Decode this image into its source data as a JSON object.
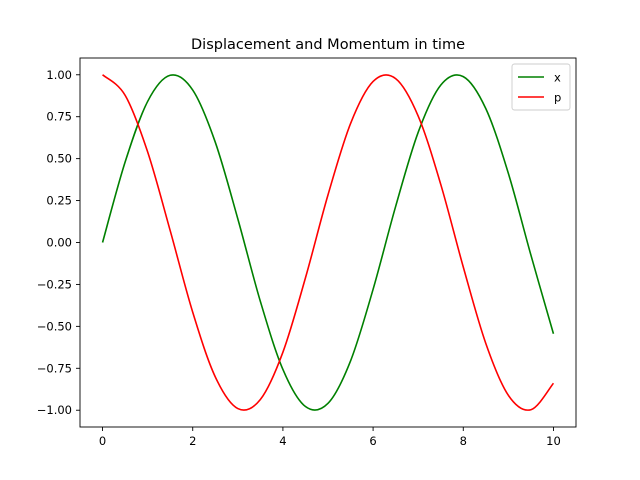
{
  "chart_data": {
    "type": "line",
    "title": "Displacement and Momentum in time",
    "xlabel": "",
    "ylabel": "",
    "xlim": [
      -0.5,
      10.5
    ],
    "ylim": [
      -1.1,
      1.1
    ],
    "x_range": [
      0,
      10
    ],
    "x_ticks": [
      0,
      2,
      4,
      6,
      8,
      10
    ],
    "x_tick_labels": [
      "0",
      "2",
      "4",
      "6",
      "8",
      "10"
    ],
    "y_ticks": [
      1.0,
      0.75,
      0.5,
      0.25,
      0.0,
      -0.25,
      -0.5,
      -0.75,
      -1.0
    ],
    "y_tick_labels": [
      "1.00",
      "0.75",
      "0.50",
      "0.25",
      "0.00",
      "−0.25",
      "−0.50",
      "−0.75",
      "−1.00"
    ],
    "grid": false,
    "legend_position": "top-right",
    "series": [
      {
        "name": "x",
        "color": "#008000",
        "x": [
          0,
          0.5,
          1,
          1.5,
          2,
          2.5,
          3,
          3.5,
          4,
          4.5,
          5,
          5.5,
          6,
          6.5,
          7,
          7.5,
          8,
          8.5,
          9,
          9.5,
          10
        ],
        "y": [
          0.0,
          0.479,
          0.841,
          0.997,
          0.909,
          0.598,
          0.141,
          -0.351,
          -0.757,
          -0.978,
          -0.959,
          -0.706,
          -0.279,
          0.215,
          0.657,
          0.938,
          0.989,
          0.798,
          0.412,
          -0.075,
          -0.544
        ]
      },
      {
        "name": "p",
        "color": "#ff0000",
        "x": [
          0,
          0.5,
          1,
          1.5,
          2,
          2.5,
          3,
          3.5,
          4,
          4.5,
          5,
          5.5,
          6,
          6.5,
          7,
          7.5,
          8,
          8.5,
          9,
          9.5,
          10
        ],
        "y": [
          1.0,
          0.878,
          0.54,
          0.071,
          -0.416,
          -0.801,
          -0.99,
          -0.936,
          -0.654,
          -0.211,
          0.284,
          0.709,
          0.96,
          0.977,
          0.754,
          0.347,
          -0.146,
          -0.602,
          -0.911,
          -0.997,
          -0.839
        ]
      }
    ]
  }
}
